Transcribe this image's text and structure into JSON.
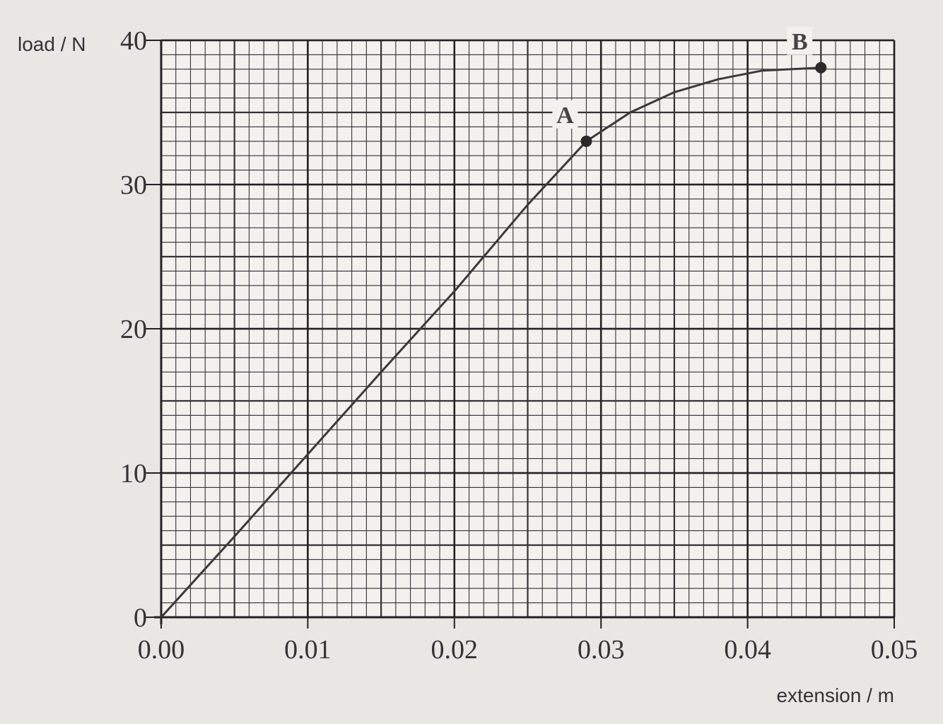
{
  "chart_data": {
    "type": "line",
    "x_label": "extension / m",
    "y_label": "load / N",
    "x": [
      0,
      0.005,
      0.01,
      0.015,
      0.02,
      0.025,
      0.029,
      0.032,
      0.035,
      0.038,
      0.041,
      0.045
    ],
    "series": [
      {
        "color": "#3a3a3a",
        "values": [
          0,
          5.6,
          11.3,
          17,
          22.6,
          28.6,
          33,
          35,
          36.4,
          37.3,
          37.9,
          38.1
        ]
      }
    ],
    "annotations": [
      {
        "text": "A",
        "x": 0.029,
        "y": 33
      },
      {
        "text": "B",
        "x": 0.045,
        "y": 38.1
      }
    ],
    "xlim": [
      0,
      0.05
    ],
    "ylim": [
      0,
      40
    ],
    "xticks": [
      {
        "value": 0,
        "label": "0.00"
      },
      0.01,
      0.02,
      0.03,
      0.04,
      0.05
    ],
    "yticks": [
      0,
      10,
      20,
      30,
      40
    ],
    "grid": true
  }
}
